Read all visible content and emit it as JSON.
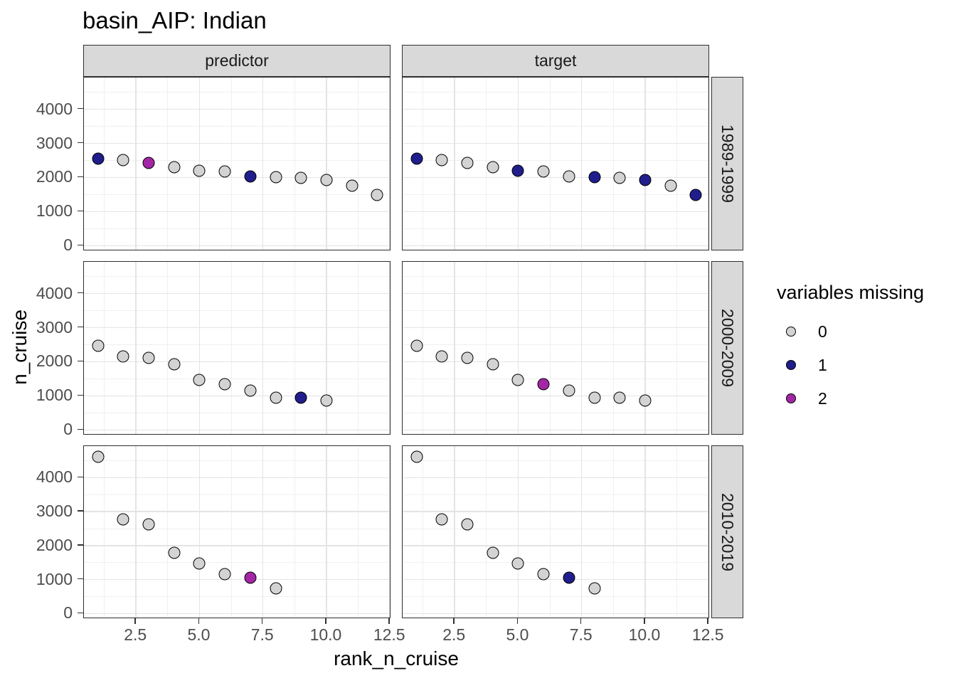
{
  "title": "basin_AIP: Indian",
  "axes": {
    "x_title": "rank_n_cruise",
    "y_title": "n_cruise",
    "x_tick_labels": [
      "2.5",
      "5.0",
      "7.5",
      "10.0",
      "12.5"
    ],
    "y_tick_labels": [
      "0",
      "1000",
      "2000",
      "3000",
      "4000"
    ]
  },
  "facets": {
    "columns": [
      "predictor",
      "target"
    ],
    "rows": [
      "1989-1999",
      "2000-2009",
      "2010-2019"
    ]
  },
  "legend": {
    "title": "variables missing",
    "items": [
      {
        "label": "0",
        "color": "#d3d3d3"
      },
      {
        "label": "1",
        "color": "#201e8c"
      },
      {
        "label": "2",
        "color": "#a326a6"
      }
    ]
  },
  "chart_data": {
    "type": "scatter",
    "title": "basin_AIP: Indian",
    "xlabel": "rank_n_cruise",
    "ylabel": "n_cruise",
    "xlim": [
      0.45,
      12.55
    ],
    "ylim": [
      -160,
      4930
    ],
    "x_ticks": [
      2.5,
      5.0,
      7.5,
      10.0,
      12.5
    ],
    "y_ticks": [
      0,
      1000,
      2000,
      3000,
      4000
    ],
    "x_minor_ticks": [
      1.25,
      3.75,
      6.25,
      8.75,
      11.25
    ],
    "y_minor_ticks": [
      500,
      1500,
      2500,
      3500,
      4500
    ],
    "grid": true,
    "legend_position": "right",
    "color_variable": "variables missing",
    "color_map": {
      "0": "#d3d3d3",
      "1": "#201e8c",
      "2": "#a326a6"
    },
    "panels": [
      {
        "facet_col": "predictor",
        "facet_row": "1989-1999",
        "x": [
          1,
          2,
          3,
          4,
          5,
          6,
          7,
          8,
          9,
          10,
          11,
          12
        ],
        "y": [
          2550,
          2520,
          2430,
          2310,
          2200,
          2180,
          2030,
          2010,
          1990,
          1930,
          1760,
          1480
        ],
        "missing": [
          1,
          0,
          2,
          0,
          0,
          0,
          1,
          0,
          0,
          0,
          0,
          0
        ]
      },
      {
        "facet_col": "target",
        "facet_row": "1989-1999",
        "x": [
          1,
          2,
          3,
          4,
          5,
          6,
          7,
          8,
          9,
          10,
          11,
          12
        ],
        "y": [
          2550,
          2520,
          2430,
          2310,
          2200,
          2180,
          2030,
          2010,
          1990,
          1930,
          1760,
          1480
        ],
        "missing": [
          1,
          0,
          0,
          0,
          1,
          0,
          0,
          1,
          0,
          1,
          0,
          1
        ]
      },
      {
        "facet_col": "predictor",
        "facet_row": "2000-2009",
        "x": [
          1,
          2,
          3,
          4,
          5,
          6,
          7,
          8,
          9,
          10
        ],
        "y": [
          2470,
          2150,
          2120,
          1930,
          1470,
          1350,
          1150,
          950,
          940,
          870
        ],
        "missing": [
          0,
          0,
          0,
          0,
          0,
          0,
          0,
          0,
          1,
          0
        ]
      },
      {
        "facet_col": "target",
        "facet_row": "2000-2009",
        "x": [
          1,
          2,
          3,
          4,
          5,
          6,
          7,
          8,
          9,
          10
        ],
        "y": [
          2470,
          2150,
          2120,
          1930,
          1470,
          1350,
          1150,
          950,
          940,
          870
        ],
        "missing": [
          0,
          0,
          0,
          0,
          0,
          2,
          0,
          0,
          0,
          0
        ]
      },
      {
        "facet_col": "predictor",
        "facet_row": "2010-2019",
        "x": [
          1,
          2,
          3,
          4,
          5,
          6,
          7,
          8
        ],
        "y": [
          4620,
          2770,
          2630,
          1790,
          1470,
          1160,
          1060,
          740
        ],
        "missing": [
          0,
          0,
          0,
          0,
          0,
          0,
          2,
          0
        ]
      },
      {
        "facet_col": "target",
        "facet_row": "2010-2019",
        "x": [
          1,
          2,
          3,
          4,
          5,
          6,
          7,
          8
        ],
        "y": [
          4620,
          2770,
          2630,
          1790,
          1470,
          1160,
          1060,
          740
        ],
        "missing": [
          0,
          0,
          0,
          0,
          0,
          0,
          1,
          0
        ]
      }
    ]
  }
}
